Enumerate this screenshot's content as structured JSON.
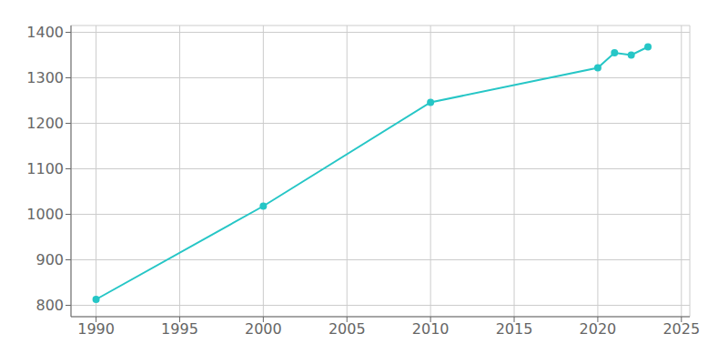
{
  "chart_data": {
    "type": "line",
    "x": [
      1990,
      2000,
      2010,
      2020,
      2021,
      2022,
      2023
    ],
    "values": [
      813,
      1018,
      1246,
      1322,
      1355,
      1350,
      1368
    ],
    "color": "#26c6c6",
    "marker": "circle",
    "xlim": [
      1988.5,
      2025.5
    ],
    "ylim": [
      775,
      1415
    ],
    "xticks": [
      1990,
      1995,
      2000,
      2005,
      2010,
      2015,
      2020,
      2025
    ],
    "yticks": [
      800,
      900,
      1000,
      1100,
      1200,
      1300,
      1400
    ],
    "grid": true
  }
}
